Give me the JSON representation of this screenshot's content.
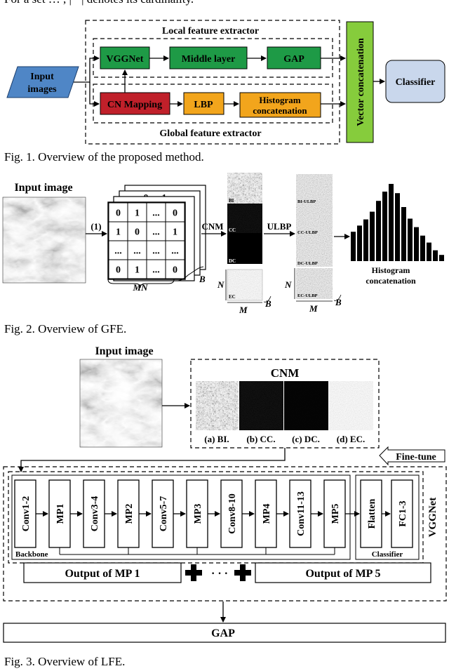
{
  "top_text": "For a set … , | · | denotes its cardinality.",
  "fig1": {
    "caption": "Fig. 1.  Overview of the proposed method.",
    "local_title": "Local feature extractor",
    "global_title": "Global feature extractor",
    "input_line1": "Input",
    "input_line2": "images",
    "vggnet": "VGGNet",
    "middle_layer": "Middle layer",
    "gap": "GAP",
    "cn_mapping": "CN Mapping",
    "lbp": "LBP",
    "hist_line1": "Histogram",
    "hist_line2": "concatenation",
    "vector_concat": "Vector concatenation",
    "classifier": "Classifier",
    "colors": {
      "green": "#1e9a46",
      "red": "#c0202a",
      "orange": "#f2a51c",
      "blue": "#4f86c6",
      "light_green": "#86cc3c",
      "light_blue": "#c9d7ec"
    }
  },
  "fig2": {
    "caption": "Fig. 2.  Overview of GFE.",
    "input_image": "Input image",
    "step1": "(1)",
    "matrix": [
      [
        "0",
        "1",
        "...",
        "0"
      ],
      [
        "1",
        "0",
        "...",
        "1"
      ],
      [
        "...",
        "...",
        "...",
        "..."
      ],
      [
        "0",
        "1",
        "...",
        "0"
      ]
    ],
    "back_top": [
      "0",
      "1"
    ],
    "mn": "MN",
    "b": "B",
    "cnm": "CNM",
    "ulbp": "ULBP",
    "maps": [
      "BI",
      "CC",
      "DC",
      "EC"
    ],
    "ulbp_maps": [
      "BI-ULBP",
      "CC-ULBP",
      "DC-ULBP",
      "EC-ULBP"
    ],
    "n": "N",
    "m": "M",
    "hist_line1": "Histogram",
    "hist_line2": "concatenation",
    "histogram_bars": [
      0.38,
      0.46,
      0.54,
      0.64,
      0.78,
      0.9,
      1.0,
      0.88,
      0.7,
      0.55,
      0.44,
      0.33,
      0.24,
      0.14,
      0.08
    ]
  },
  "fig3": {
    "caption": "Fig. 3.  Overview of LFE.",
    "input_image": "Input image",
    "cnm": "CNM",
    "cnm_labels": [
      "(a) BI.",
      "(b) CC.",
      "(c) DC.",
      "(d) EC."
    ],
    "fine_tune": "Fine-tune",
    "layers": [
      "Conv1-2",
      "MP1",
      "Conv3-4",
      "MP2",
      "Conv5-7",
      "MP3",
      "Conv8-10",
      "MP4",
      "Conv11-13",
      "MP5"
    ],
    "classifier_layers": [
      "Flatten",
      "FC1-3"
    ],
    "backbone": "Backbone",
    "classifier": "Classifier",
    "vggnet": "VGGNet",
    "output_first": "Output of MP 1",
    "output_last": "Output of MP 5",
    "dots": "· · ·",
    "gap": "GAP"
  }
}
